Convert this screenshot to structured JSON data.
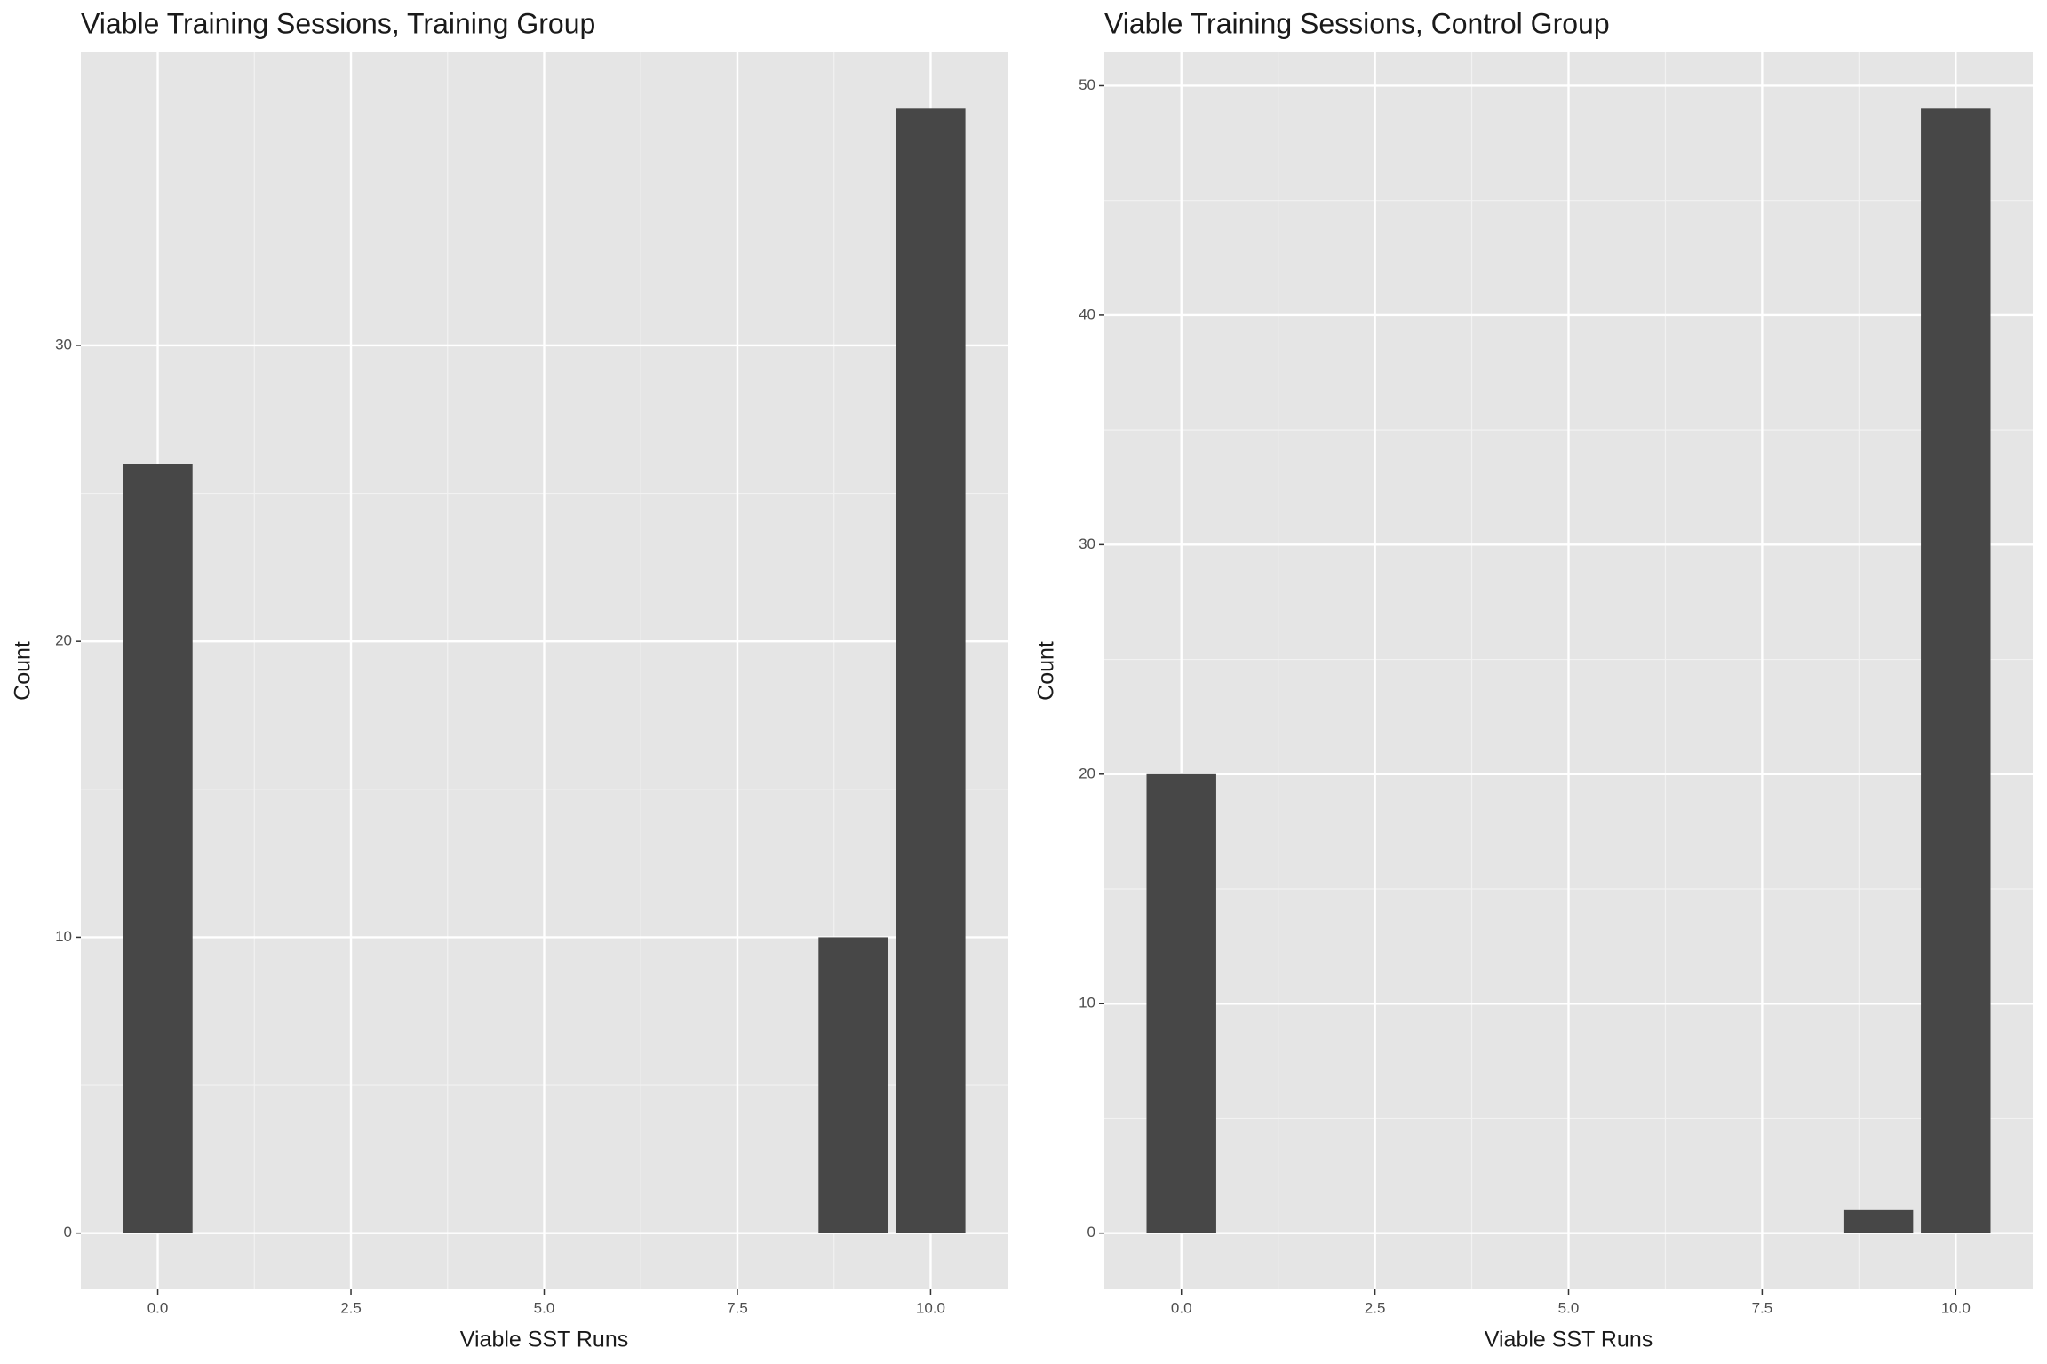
{
  "chart_data": [
    {
      "type": "bar",
      "title": "Viable Training Sessions, Training Group",
      "xlabel": "Viable SST Runs",
      "ylabel": "Count",
      "x": [
        0,
        9,
        10
      ],
      "values": [
        26,
        10,
        38
      ],
      "color": "#474747",
      "xlim": [
        -0.995,
        10.995
      ],
      "xticks": [
        {
          "value": 0,
          "label": "0.0"
        },
        2.5,
        {
          "value": 5,
          "label": "5.0"
        },
        7.5,
        {
          "value": 10,
          "label": "10.0"
        }
      ],
      "ylim": [
        -1.9,
        39.9
      ],
      "yticks": [
        0,
        10,
        20,
        30
      ],
      "grid": true
    },
    {
      "type": "bar",
      "title": "Viable Training Sessions, Control Group",
      "xlabel": "Viable SST Runs",
      "ylabel": "Count",
      "x": [
        0,
        9,
        10
      ],
      "values": [
        20,
        1,
        49
      ],
      "color": "#474747",
      "xlim": [
        -0.995,
        10.995
      ],
      "xticks": [
        {
          "value": 0,
          "label": "0.0"
        },
        2.5,
        {
          "value": 5,
          "label": "5.0"
        },
        7.5,
        {
          "value": 10,
          "label": "10.0"
        }
      ],
      "ylim": [
        -2.45,
        51.45
      ],
      "yticks": [
        0,
        10,
        20,
        30,
        40,
        50
      ],
      "grid": true
    }
  ]
}
